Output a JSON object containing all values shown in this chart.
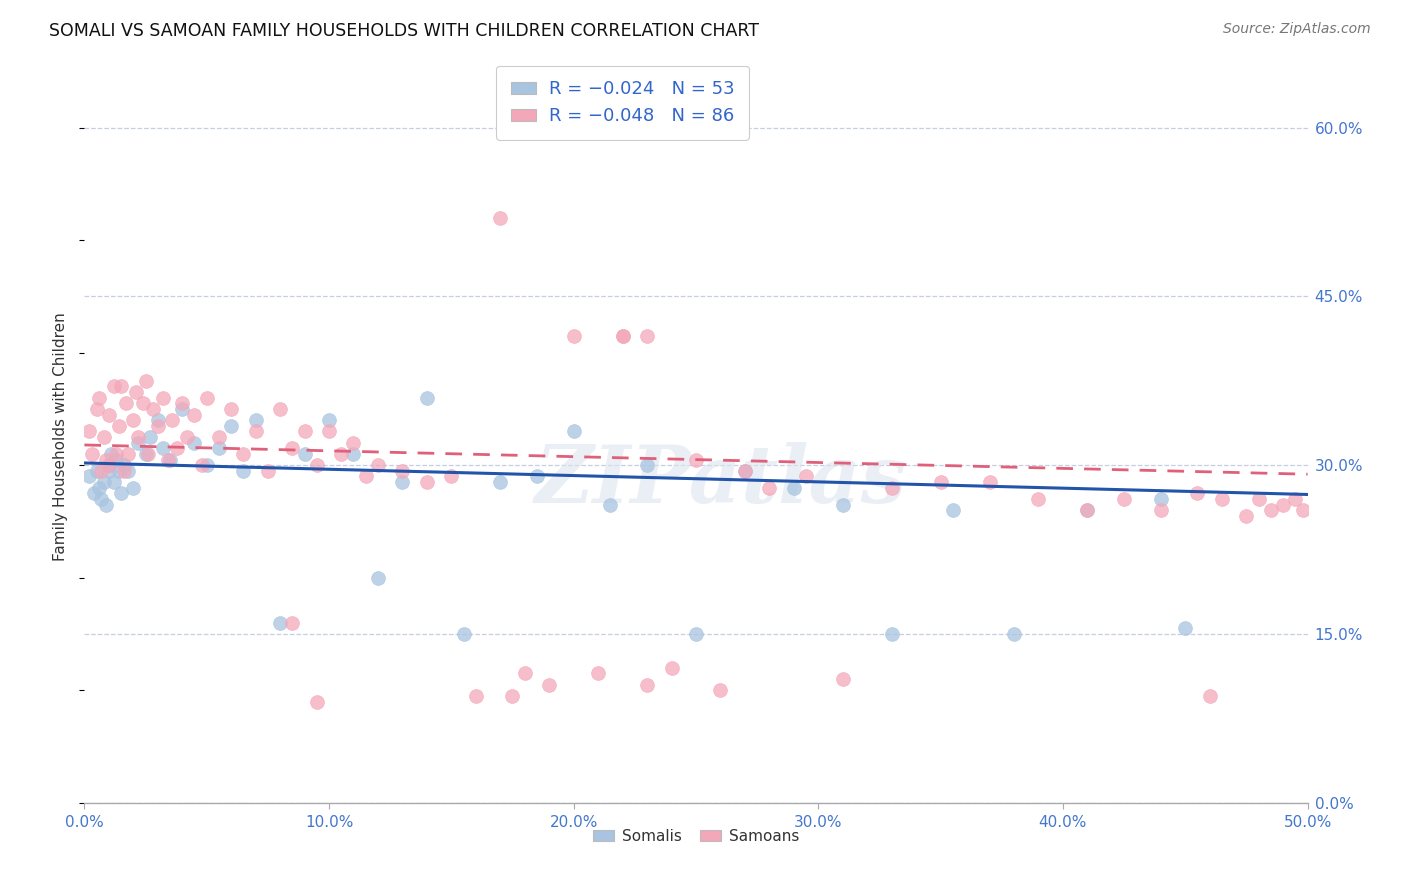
{
  "title": "SOMALI VS SAMOAN FAMILY HOUSEHOLDS WITH CHILDREN CORRELATION CHART",
  "source": "Source: ZipAtlas.com",
  "xlim": [
    0.0,
    0.5
  ],
  "ylim": [
    0.0,
    0.65
  ],
  "somali_color": "#a8c4e0",
  "samoan_color": "#f4a7b9",
  "somali_line_color": "#2255aa",
  "samoan_line_color": "#e0607a",
  "watermark_text": "ZIPatlas",
  "somali_x": [
    0.002,
    0.004,
    0.005,
    0.006,
    0.007,
    0.008,
    0.009,
    0.01,
    0.01,
    0.011,
    0.012,
    0.013,
    0.014,
    0.015,
    0.016,
    0.018,
    0.02,
    0.022,
    0.025,
    0.027,
    0.03,
    0.032,
    0.035,
    0.04,
    0.045,
    0.05,
    0.055,
    0.06,
    0.065,
    0.07,
    0.08,
    0.09,
    0.1,
    0.11,
    0.12,
    0.13,
    0.14,
    0.155,
    0.17,
    0.185,
    0.2,
    0.215,
    0.23,
    0.25,
    0.27,
    0.29,
    0.31,
    0.33,
    0.355,
    0.38,
    0.41,
    0.44,
    0.45
  ],
  "somali_y": [
    0.29,
    0.275,
    0.295,
    0.28,
    0.27,
    0.285,
    0.265,
    0.3,
    0.295,
    0.31,
    0.285,
    0.305,
    0.295,
    0.275,
    0.3,
    0.295,
    0.28,
    0.32,
    0.31,
    0.325,
    0.34,
    0.315,
    0.305,
    0.35,
    0.32,
    0.3,
    0.315,
    0.335,
    0.295,
    0.34,
    0.16,
    0.31,
    0.34,
    0.31,
    0.2,
    0.285,
    0.36,
    0.15,
    0.285,
    0.29,
    0.33,
    0.265,
    0.3,
    0.15,
    0.295,
    0.28,
    0.265,
    0.15,
    0.26,
    0.15,
    0.26,
    0.27,
    0.155
  ],
  "samoan_x": [
    0.002,
    0.003,
    0.005,
    0.006,
    0.007,
    0.008,
    0.009,
    0.01,
    0.01,
    0.012,
    0.013,
    0.014,
    0.015,
    0.016,
    0.017,
    0.018,
    0.02,
    0.021,
    0.022,
    0.024,
    0.025,
    0.026,
    0.028,
    0.03,
    0.032,
    0.034,
    0.036,
    0.038,
    0.04,
    0.042,
    0.045,
    0.048,
    0.05,
    0.055,
    0.06,
    0.065,
    0.07,
    0.075,
    0.08,
    0.085,
    0.09,
    0.095,
    0.1,
    0.105,
    0.11,
    0.115,
    0.12,
    0.13,
    0.14,
    0.15,
    0.16,
    0.17,
    0.18,
    0.19,
    0.2,
    0.21,
    0.22,
    0.23,
    0.24,
    0.25,
    0.26,
    0.27,
    0.28,
    0.295,
    0.31,
    0.33,
    0.35,
    0.37,
    0.39,
    0.41,
    0.425,
    0.44,
    0.455,
    0.465,
    0.475,
    0.48,
    0.485,
    0.49,
    0.495,
    0.498,
    0.22,
    0.23,
    0.175,
    0.085,
    0.095,
    0.46
  ],
  "samoan_y": [
    0.33,
    0.31,
    0.35,
    0.36,
    0.295,
    0.325,
    0.305,
    0.345,
    0.3,
    0.37,
    0.31,
    0.335,
    0.37,
    0.295,
    0.355,
    0.31,
    0.34,
    0.365,
    0.325,
    0.355,
    0.375,
    0.31,
    0.35,
    0.335,
    0.36,
    0.305,
    0.34,
    0.315,
    0.355,
    0.325,
    0.345,
    0.3,
    0.36,
    0.325,
    0.35,
    0.31,
    0.33,
    0.295,
    0.35,
    0.315,
    0.33,
    0.3,
    0.33,
    0.31,
    0.32,
    0.29,
    0.3,
    0.295,
    0.285,
    0.29,
    0.095,
    0.52,
    0.115,
    0.105,
    0.415,
    0.115,
    0.415,
    0.105,
    0.12,
    0.305,
    0.1,
    0.295,
    0.28,
    0.29,
    0.11,
    0.28,
    0.285,
    0.285,
    0.27,
    0.26,
    0.27,
    0.26,
    0.275,
    0.27,
    0.255,
    0.27,
    0.26,
    0.265,
    0.27,
    0.26,
    0.415,
    0.415,
    0.095,
    0.16,
    0.09,
    0.095
  ]
}
